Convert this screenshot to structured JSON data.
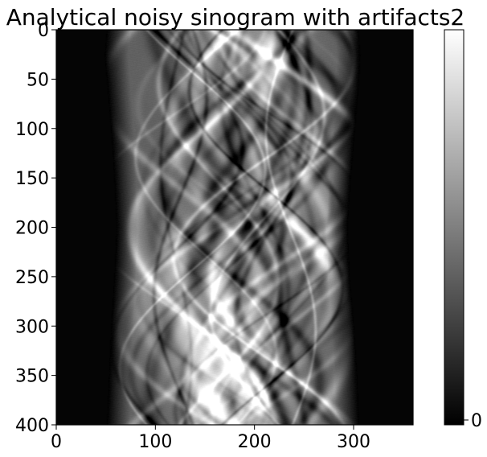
{
  "chart_data": {
    "type": "heatmap",
    "title": "Analytical noisy sinogram with artifacts2",
    "xlabel": "",
    "ylabel": "",
    "colormap": "gray",
    "xlim": [
      0,
      360
    ],
    "ylim": [
      400,
      0
    ],
    "x_ticks": [
      0,
      100,
      200,
      300
    ],
    "y_ticks": [
      0,
      50,
      100,
      150,
      200,
      250,
      300,
      350,
      400
    ],
    "colorbar": {
      "ticks": [
        0
      ],
      "colors": [
        "#000000",
        "#ffffff"
      ]
    },
    "support": {
      "rows": [
        0,
        25,
        50,
        100,
        150,
        200,
        250,
        300,
        350,
        400
      ],
      "left_edge": [
        60,
        58,
        60,
        64,
        67,
        69,
        67,
        64,
        62,
        60
      ],
      "right_edge": [
        295,
        297,
        296,
        292,
        288,
        285,
        287,
        291,
        294,
        296
      ]
    },
    "bright_regions": [
      {
        "x": 140,
        "y": 290,
        "intensity": 1.0
      },
      {
        "x": 200,
        "y": 30,
        "intensity": 0.85
      },
      {
        "x": 200,
        "y": 380,
        "intensity": 0.85
      },
      {
        "x": 140,
        "y": 240,
        "intensity": 0.75
      },
      {
        "x": 170,
        "y": 350,
        "intensity": 0.7
      },
      {
        "x": 250,
        "y": 150,
        "intensity": 0.65
      }
    ]
  }
}
